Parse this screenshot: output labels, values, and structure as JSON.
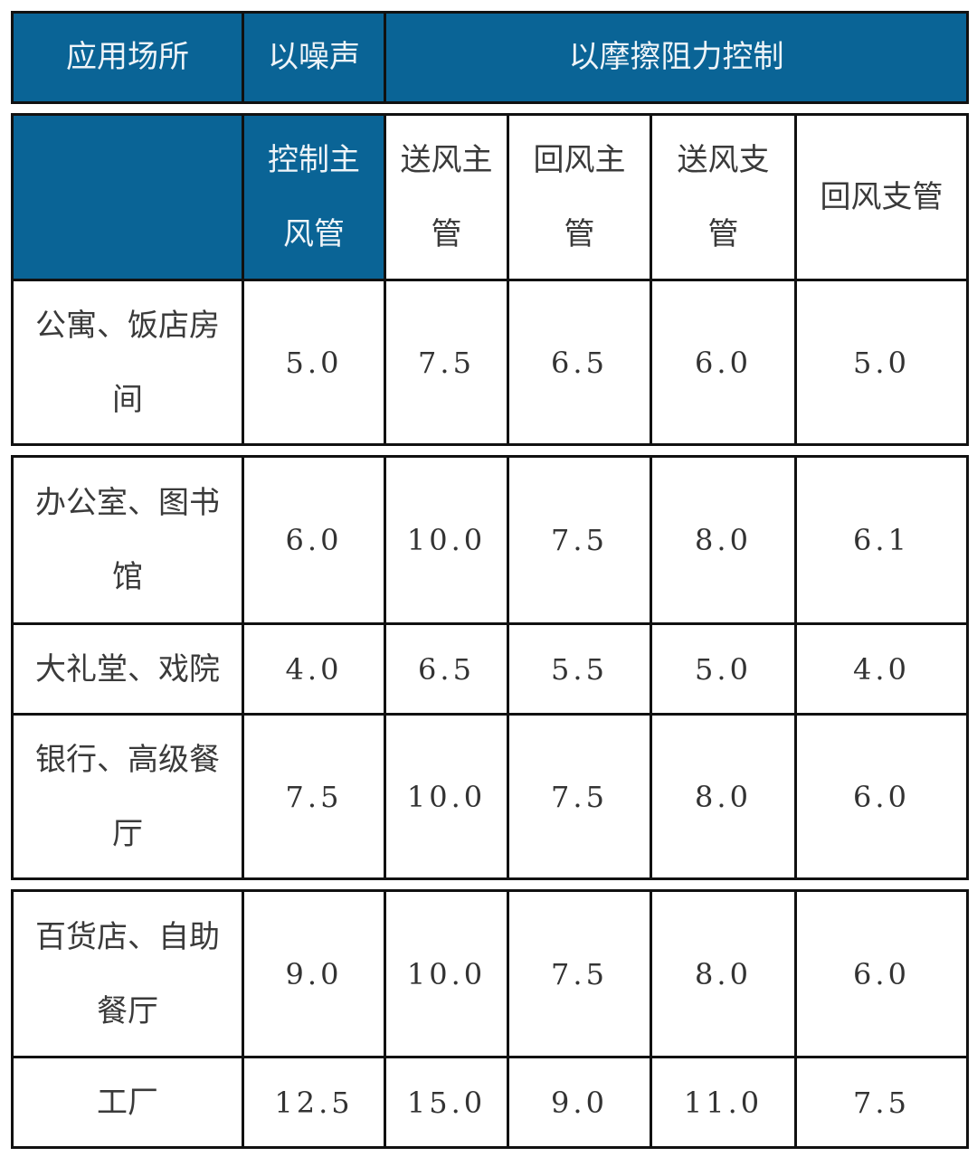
{
  "header": {
    "col_place": "应用场所",
    "col_noise": "以噪声",
    "col_friction": "以摩擦阻力控制"
  },
  "subheader": {
    "noise_main": "控制主风管",
    "supply_main": "送风主管",
    "return_main": "回风主管",
    "supply_branch": "送风支管",
    "return_branch": "回风支管"
  },
  "colors": {
    "header_blue": "#0a6496",
    "border": "#111111"
  },
  "rows": [
    {
      "place": "公寓、饭店房间",
      "values": [
        "5.0",
        "7.5",
        "6.5",
        "6.0",
        "5.0"
      ]
    },
    {
      "place": "办公室、图书馆",
      "values": [
        "6.0",
        "10.0",
        "7.5",
        "8.0",
        "6.1"
      ]
    },
    {
      "place": "大礼堂、戏院",
      "values": [
        "4.0",
        "6.5",
        "5.5",
        "5.0",
        "4.0"
      ]
    },
    {
      "place": "银行、高级餐厅",
      "values": [
        "7.5",
        "10.0",
        "7.5",
        "8.0",
        "6.0"
      ]
    },
    {
      "place": "百货店、自助餐厅",
      "values": [
        "9.0",
        "10.0",
        "7.5",
        "8.0",
        "6.0"
      ]
    },
    {
      "place": "工厂",
      "values": [
        "12.5",
        "15.0",
        "9.0",
        "11.0",
        "7.5"
      ]
    }
  ]
}
